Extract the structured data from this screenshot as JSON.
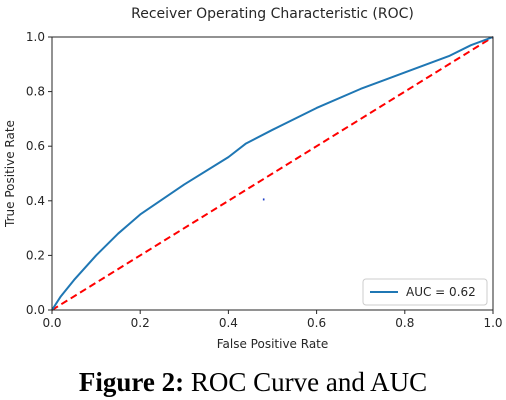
{
  "chart_data": {
    "type": "line",
    "title": "Receiver Operating Characteristic (ROC)",
    "xlabel": "False Positive Rate",
    "ylabel": "True Positive Rate",
    "xlim": [
      0,
      1
    ],
    "ylim": [
      0,
      1
    ],
    "xticks": [
      "0.0",
      "0.2",
      "0.4",
      "0.6",
      "0.8",
      "1.0"
    ],
    "yticks": [
      "0.0",
      "0.2",
      "0.4",
      "0.6",
      "0.8",
      "1.0"
    ],
    "grid": false,
    "legend_position": "lower-right",
    "series": [
      {
        "name": "AUC = 0.62",
        "color": "#1f77b4",
        "style": "solid",
        "x": [
          0.0,
          0.02,
          0.05,
          0.1,
          0.15,
          0.2,
          0.3,
          0.4,
          0.44,
          0.5,
          0.6,
          0.7,
          0.8,
          0.9,
          0.95,
          1.0
        ],
        "y": [
          0.0,
          0.05,
          0.11,
          0.2,
          0.28,
          0.35,
          0.46,
          0.56,
          0.61,
          0.66,
          0.74,
          0.81,
          0.87,
          0.93,
          0.97,
          1.0
        ]
      },
      {
        "name": "",
        "color": "#ff0000",
        "style": "dashed",
        "x": [
          0.0,
          1.0
        ],
        "y": [
          0.0,
          1.0
        ]
      }
    ],
    "annotations": [
      {
        "x": 0.48,
        "y": 0.405,
        "color": "#1f3fc8"
      }
    ]
  },
  "caption": {
    "label": "Figure 2:",
    "text": " ROC Curve and AUC"
  }
}
